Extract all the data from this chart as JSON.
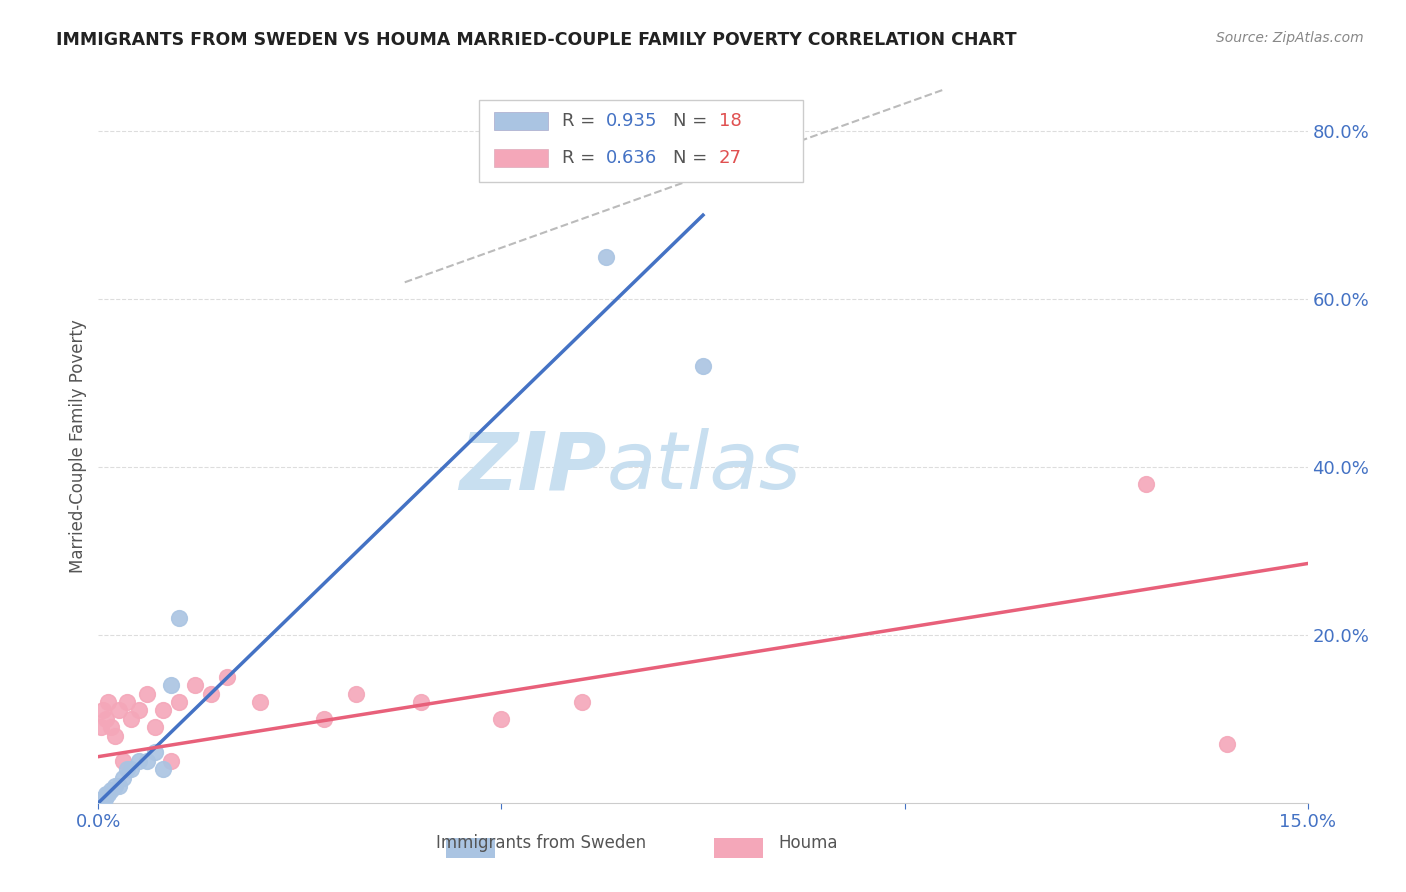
{
  "title": "IMMIGRANTS FROM SWEDEN VS HOUMA MARRIED-COUPLE FAMILY POVERTY CORRELATION CHART",
  "source": "Source: ZipAtlas.com",
  "ylabel": "Married-Couple Family Poverty",
  "xlim": [
    0.0,
    0.15
  ],
  "ylim": [
    0.0,
    0.85
  ],
  "yticks_right": [
    0.2,
    0.4,
    0.6,
    0.8
  ],
  "ytick_labels_right": [
    "20.0%",
    "40.0%",
    "60.0%",
    "80.0%"
  ],
  "sweden_R": 0.935,
  "sweden_N": 18,
  "houma_R": 0.636,
  "houma_N": 27,
  "sweden_color": "#aac4e2",
  "sweden_line_color": "#4472c4",
  "houma_color": "#f4a7b9",
  "houma_line_color": "#e8607a",
  "legend_label_sweden": "Immigrants from Sweden",
  "legend_label_houma": "Houma",
  "background_color": "#ffffff",
  "grid_color": "#dddddd",
  "title_color": "#222222",
  "axis_label_color": "#555555",
  "right_axis_color": "#4472c4",
  "watermark_zip_color": "#c8dff0",
  "watermark_atlas_color": "#c8dff0",
  "sweden_x": [
    0.0005,
    0.0008,
    0.001,
    0.0012,
    0.0015,
    0.002,
    0.0025,
    0.003,
    0.0035,
    0.004,
    0.005,
    0.006,
    0.007,
    0.008,
    0.009,
    0.01,
    0.063,
    0.075
  ],
  "sweden_y": [
    0.005,
    0.005,
    0.01,
    0.01,
    0.015,
    0.02,
    0.02,
    0.03,
    0.04,
    0.04,
    0.05,
    0.05,
    0.06,
    0.04,
    0.14,
    0.22,
    0.65,
    0.52
  ],
  "houma_x": [
    0.0003,
    0.0006,
    0.001,
    0.0012,
    0.0015,
    0.002,
    0.0025,
    0.003,
    0.0035,
    0.004,
    0.005,
    0.006,
    0.007,
    0.008,
    0.009,
    0.01,
    0.012,
    0.014,
    0.016,
    0.02,
    0.028,
    0.032,
    0.04,
    0.05,
    0.06,
    0.13,
    0.14
  ],
  "houma_y": [
    0.09,
    0.11,
    0.1,
    0.12,
    0.09,
    0.08,
    0.11,
    0.05,
    0.12,
    0.1,
    0.11,
    0.13,
    0.09,
    0.11,
    0.05,
    0.12,
    0.14,
    0.13,
    0.15,
    0.12,
    0.1,
    0.13,
    0.12,
    0.1,
    0.12,
    0.38,
    0.07
  ],
  "sweden_line_x": [
    0.0,
    0.075
  ],
  "sweden_line_y": [
    0.0,
    0.7
  ],
  "houma_line_x": [
    0.0,
    0.15
  ],
  "houma_line_y": [
    0.055,
    0.285
  ],
  "dash_line_x": [
    0.038,
    0.105
  ],
  "dash_line_y": [
    0.62,
    0.85
  ]
}
